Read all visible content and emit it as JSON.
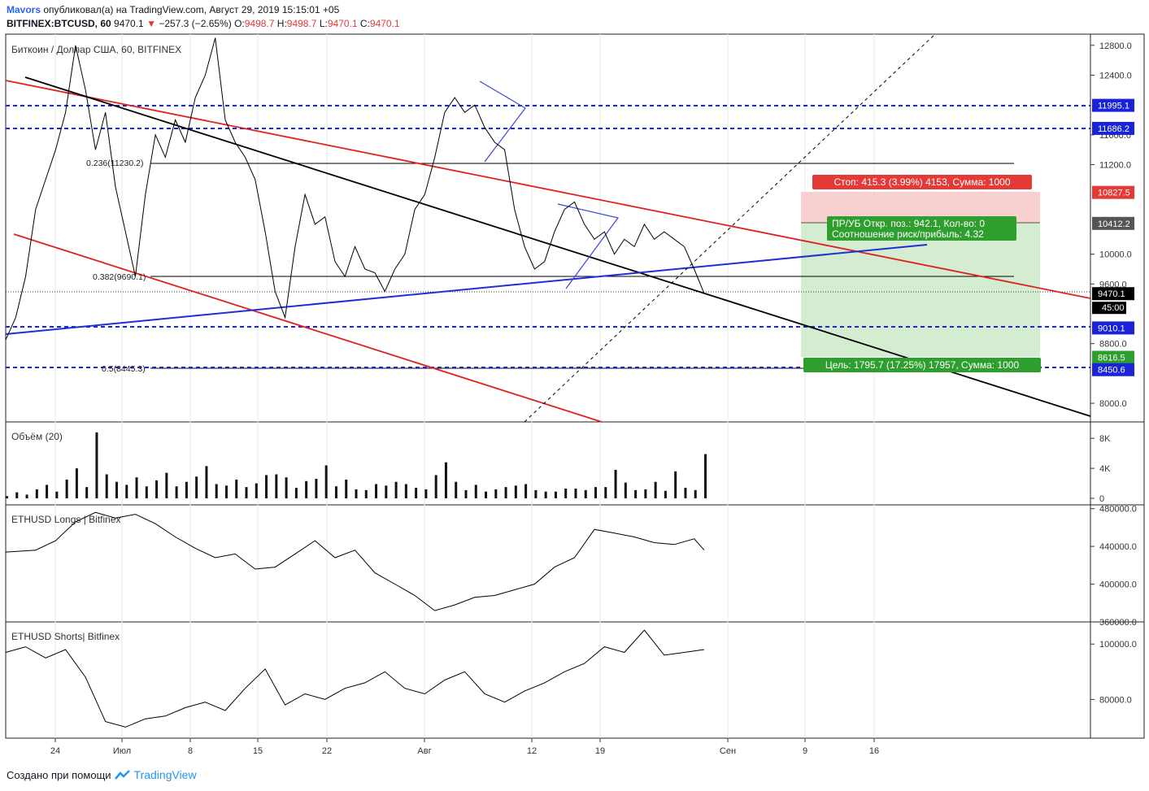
{
  "header": {
    "user": "Mavors",
    "published_text": "опубликовал(а) на TradingView.com, Август 29, 2019 15:15:01 +05",
    "symbol": "BITFINEX:BTCUSD, 60",
    "price": "9470.1",
    "change": "−257.3 (−2.65%)",
    "open_label": "O:",
    "open": "9498.7",
    "high_label": "H:",
    "high": "9498.7",
    "low_label": "L:",
    "low": "9470.1",
    "close_label": "C:",
    "close": "9470.1"
  },
  "footer": {
    "text": "Создано при помощи",
    "brand": "TradingView"
  },
  "colors": {
    "red": "#e53935",
    "blue": "#1f2fd6",
    "dashed_blue": "#1a23d8",
    "green": "#4caf50",
    "stop_red": "#e53935",
    "black": "#000000"
  },
  "chart_data": [
    {
      "type": "line",
      "title": "Биткоин / Доллар США, 60, BITFINEX",
      "x_tick_labels": [
        "24",
        "Июл",
        "8",
        "15",
        "22",
        "Авг",
        "12",
        "19",
        "Сен",
        "9",
        "16"
      ],
      "y_tick_labels": [
        "12800.0",
        "12400.0",
        "11600.0",
        "11200.0",
        "10000.0",
        "9600.0",
        "8800.0",
        "8000.0"
      ],
      "ylim": [
        7750,
        12950
      ],
      "series": [
        {
          "x": [
            0,
            1,
            2,
            3,
            4,
            5,
            6,
            7,
            8,
            9,
            10,
            11,
            12,
            13,
            14,
            15,
            16,
            17,
            18,
            19,
            20,
            21,
            22,
            23,
            24,
            25,
            26,
            27,
            28,
            29,
            30,
            31,
            32,
            33,
            34,
            35,
            36,
            37,
            38,
            39,
            40,
            41,
            42,
            43,
            44,
            45,
            46,
            47,
            48,
            49,
            50,
            51,
            52,
            53,
            54,
            55,
            56,
            57,
            58,
            59,
            60,
            61,
            62,
            63,
            64,
            65,
            66,
            67,
            68,
            69,
            70
          ],
          "values": [
            8850,
            9150,
            9700,
            10600,
            11000,
            11400,
            11900,
            12800,
            12200,
            11400,
            11900,
            10900,
            10300,
            9700,
            10800,
            11600,
            11300,
            11800,
            11500,
            12100,
            12400,
            12900,
            11800,
            11500,
            11300,
            11000,
            10300,
            9500,
            9150,
            10100,
            10800,
            10400,
            10500,
            9900,
            9700,
            10100,
            9800,
            9750,
            9500,
            9800,
            10000,
            10600,
            10800,
            11300,
            11900,
            12100,
            11900,
            12000,
            11700,
            11500,
            11400,
            10600,
            10100,
            9800,
            9900,
            10300,
            10600,
            10700,
            10400,
            10200,
            10300,
            10000,
            10200,
            10100,
            10400,
            10200,
            10300,
            10200,
            10100,
            9800,
            9470
          ]
        }
      ],
      "levels": [
        {
          "price": 11995.1,
          "label": "11995.1",
          "style": "dashed-blue"
        },
        {
          "price": 11686.2,
          "label": "11686.2",
          "style": "dashed-blue"
        },
        {
          "price": 10827.5,
          "label": "10827.5",
          "style": "stop"
        },
        {
          "price": 10412.2,
          "label": "10412.2",
          "style": "entry"
        },
        {
          "price": 9470.1,
          "label": "9470.1",
          "style": "last"
        },
        {
          "price": 9010.1,
          "label": "9010.1",
          "style": "dashed-blue"
        },
        {
          "price": 8616.5,
          "label": "8616.5",
          "style": "target"
        },
        {
          "price": 8450.6,
          "label": "8450.6",
          "style": "dashed-blue"
        }
      ],
      "countdown": "45:00",
      "fib_labels": [
        "0.236(11230.2)",
        "0.382(9690.1)",
        "0.5(8445.3)"
      ],
      "position": {
        "stop_text": "Стоп: 415.3 (3.99%) 4153, Сумма: 1000",
        "pnl_text_1": "ПР/УБ Откр. поз.: 942.1, Кол-во: 0",
        "pnl_text_2": "Соотношение риск/прибыль: 4.32",
        "target_text": "Цель: 1795.7 (17.25%) 17957, Сумма: 1000"
      }
    },
    {
      "type": "bar",
      "title": "Объём (20)",
      "y_tick_labels": [
        "8K",
        "4K",
        "0"
      ],
      "ylim": [
        0,
        9000
      ],
      "values": [
        300,
        800,
        500,
        1200,
        1800,
        900,
        2500,
        4000,
        1500,
        8800,
        3200,
        2200,
        1800,
        2800,
        1600,
        2400,
        3400,
        1600,
        2200,
        2900,
        4300,
        1900,
        1700,
        2500,
        1500,
        2000,
        3100,
        3200,
        2800,
        1400,
        2300,
        2600,
        4400,
        1600,
        2500,
        1200,
        1100,
        1900,
        1700,
        2200,
        1900,
        1400,
        1200,
        3100,
        4800,
        2200,
        1100,
        1800,
        900,
        1200,
        1500,
        1700,
        1900,
        1100,
        900,
        900,
        1300,
        1300,
        1100,
        1500,
        1500,
        3800,
        2100,
        1100,
        1200,
        2200,
        1000,
        3600,
        1400,
        1100,
        5900
      ]
    },
    {
      "type": "line",
      "title": "ETHUSD Longs | Bitfinex",
      "y_tick_labels": [
        "480000.0",
        "440000.0",
        "400000.0",
        "360000.0"
      ],
      "ylim": [
        360000,
        484000
      ],
      "x": [
        0,
        3,
        5,
        7,
        9,
        11,
        13,
        15,
        17,
        19,
        21,
        23,
        25,
        27,
        29,
        31,
        33,
        35,
        37,
        39,
        41,
        43,
        45,
        47,
        49,
        51,
        53,
        55,
        57,
        59,
        61,
        63,
        65,
        67,
        69,
        70
      ],
      "values": [
        434000,
        436000,
        446000,
        466000,
        476000,
        470000,
        474000,
        464000,
        450000,
        438000,
        428000,
        432000,
        416000,
        418000,
        432000,
        446000,
        428000,
        436000,
        412000,
        400000,
        388000,
        372000,
        378000,
        386000,
        388000,
        394000,
        400000,
        418000,
        428000,
        458000,
        454000,
        450000,
        444000,
        442000,
        448000,
        436000
      ]
    },
    {
      "type": "line",
      "title": "ETHUSD Shorts| Bitfinex",
      "y_tick_labels": [
        "100000.0",
        "80000.0"
      ],
      "ylim": [
        66000,
        108000
      ],
      "x": [
        0,
        2,
        4,
        6,
        8,
        10,
        12,
        14,
        16,
        18,
        20,
        22,
        24,
        26,
        28,
        30,
        32,
        34,
        36,
        38,
        40,
        42,
        44,
        46,
        48,
        50,
        52,
        54,
        56,
        58,
        60,
        62,
        64,
        66,
        68,
        70
      ],
      "values": [
        97000,
        99000,
        95000,
        98000,
        88000,
        72000,
        70000,
        73000,
        74000,
        77000,
        79000,
        76000,
        84000,
        91000,
        78000,
        82000,
        80000,
        84000,
        86000,
        90000,
        84000,
        82000,
        87000,
        90000,
        82000,
        79000,
        83000,
        86000,
        90000,
        93000,
        99000,
        97000,
        105000,
        96000,
        97000,
        98000
      ]
    }
  ]
}
